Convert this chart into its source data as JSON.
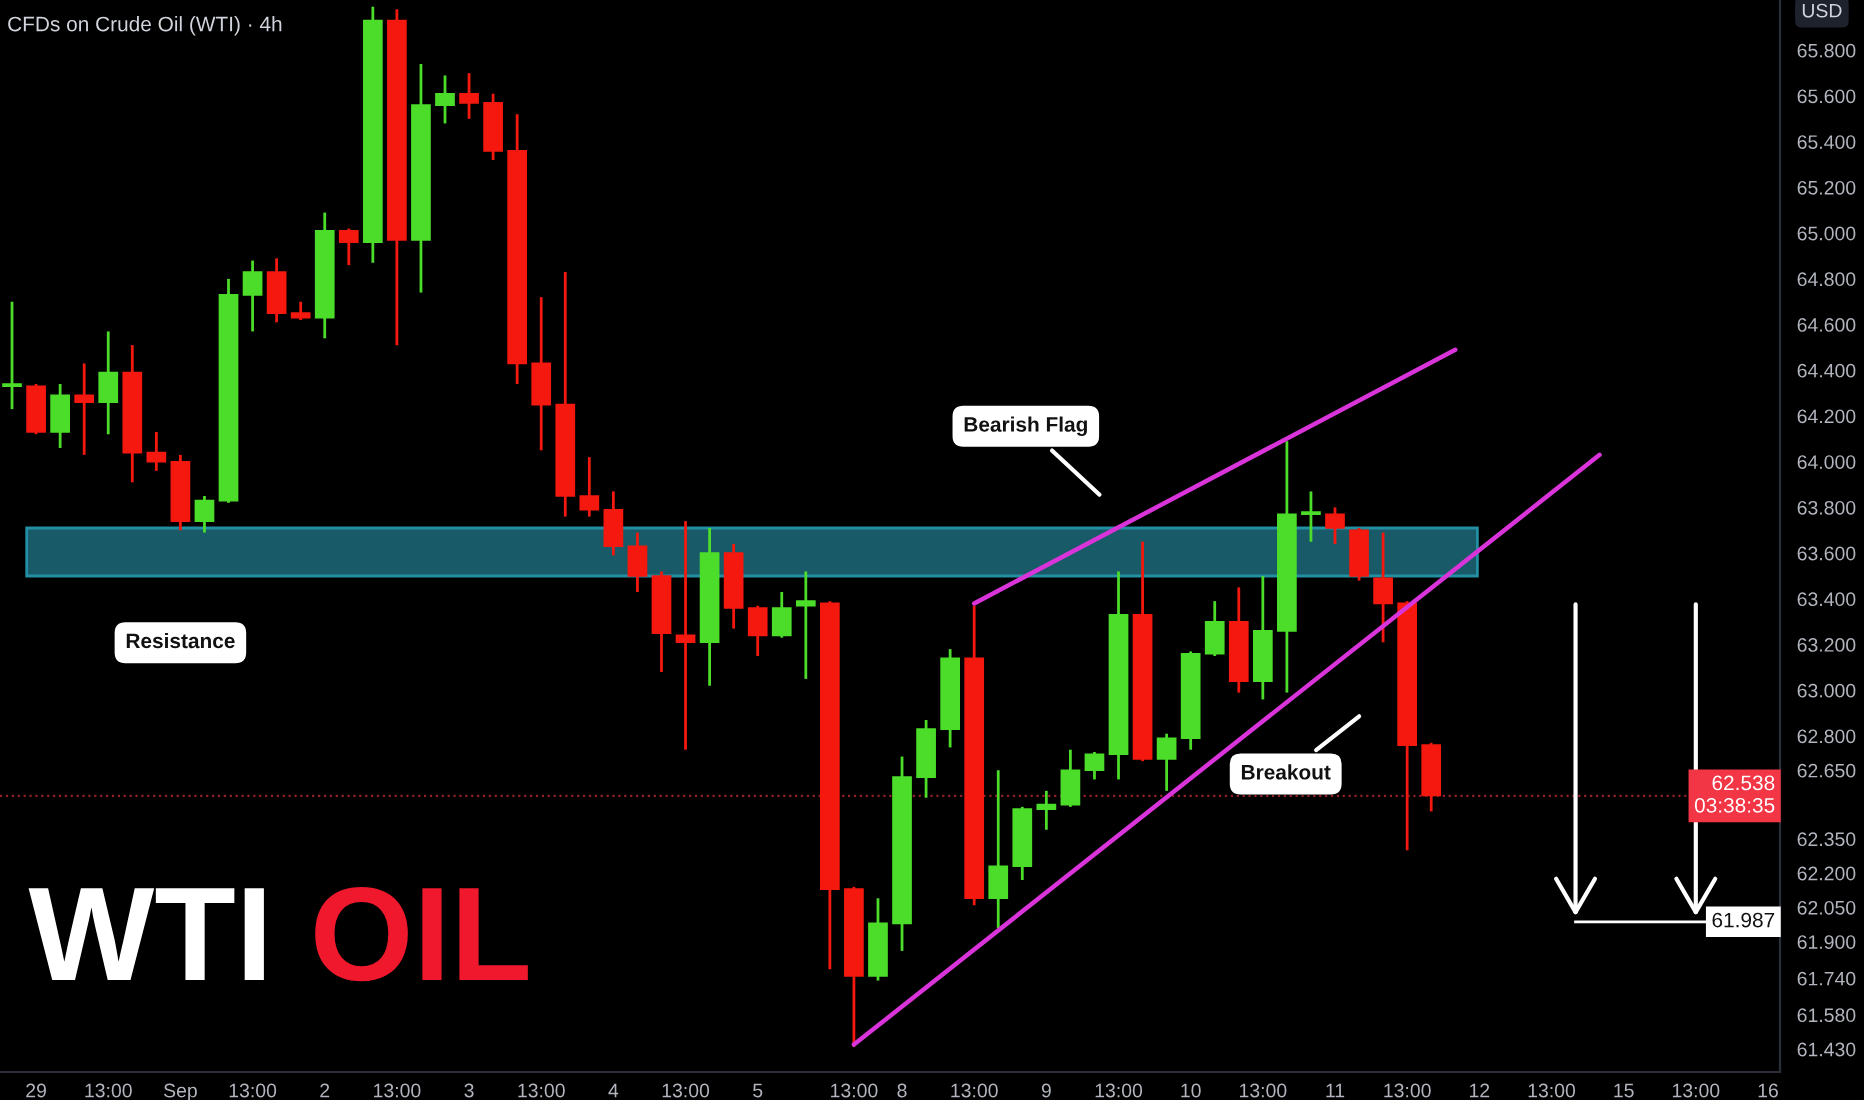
{
  "chart_data": {
    "type": "candlestick",
    "title": "WTI OIL",
    "subtitle": "CFDs on Crude Oil (WTI) · 4h",
    "ylabel": "USD",
    "categories": [
      null,
      "29",
      null,
      null,
      "13:00",
      null,
      null,
      "Sep",
      null,
      null,
      "13:00",
      null,
      null,
      "2",
      null,
      null,
      "13:00",
      null,
      null,
      "3",
      null,
      null,
      "13:00",
      null,
      null,
      "4",
      null,
      null,
      "13:00",
      null,
      null,
      "5",
      null,
      null,
      null,
      "13:00",
      null,
      "8",
      null,
      null,
      "13:00",
      null,
      null,
      "9",
      null,
      null,
      "13:00",
      null,
      null,
      "10",
      null,
      null,
      "13:00",
      null,
      null,
      "11",
      null,
      null,
      "13:00",
      null,
      null,
      "12",
      null,
      null,
      "13:00",
      null,
      null,
      "15",
      null,
      null,
      "13:00",
      null,
      null,
      "16"
    ],
    "ohlc": [
      [
        64.33,
        64.7,
        64.23,
        64.34
      ],
      [
        64.33,
        64.34,
        64.12,
        64.13
      ],
      [
        64.13,
        64.34,
        64.06,
        64.29
      ],
      [
        64.29,
        64.43,
        64.03,
        64.26
      ],
      [
        64.26,
        64.57,
        64.12,
        64.39
      ],
      [
        64.39,
        64.51,
        63.91,
        64.04
      ],
      [
        64.04,
        64.13,
        63.96,
        64.0
      ],
      [
        64.0,
        64.03,
        63.7,
        63.74
      ],
      [
        63.74,
        63.85,
        63.69,
        63.83
      ],
      [
        63.83,
        64.8,
        63.82,
        64.73
      ],
      [
        64.73,
        64.88,
        64.57,
        64.83
      ],
      [
        64.83,
        64.89,
        64.61,
        64.65
      ],
      [
        64.65,
        64.7,
        64.62,
        64.63
      ],
      [
        64.63,
        65.09,
        64.54,
        65.01
      ],
      [
        65.01,
        65.02,
        64.86,
        64.96
      ],
      [
        64.96,
        65.99,
        64.87,
        65.93
      ],
      [
        65.93,
        65.98,
        64.51,
        64.97
      ],
      [
        64.97,
        65.74,
        64.74,
        65.56
      ],
      [
        65.56,
        65.69,
        65.48,
        65.61
      ],
      [
        65.61,
        65.7,
        65.5,
        65.57
      ],
      [
        65.57,
        65.61,
        65.32,
        65.36
      ],
      [
        65.36,
        65.52,
        64.34,
        64.43
      ],
      [
        64.43,
        64.72,
        64.05,
        64.25
      ],
      [
        64.25,
        64.83,
        63.76,
        63.85
      ],
      [
        63.85,
        64.02,
        63.76,
        63.79
      ],
      [
        63.79,
        63.87,
        63.59,
        63.63
      ],
      [
        63.63,
        63.69,
        63.43,
        63.5
      ],
      [
        63.5,
        63.52,
        63.08,
        63.25
      ],
      [
        63.24,
        63.74,
        62.74,
        63.21
      ],
      [
        63.21,
        63.71,
        63.02,
        63.6
      ],
      [
        63.6,
        63.64,
        63.27,
        63.36
      ],
      [
        63.36,
        63.37,
        63.15,
        63.24
      ],
      [
        63.24,
        63.43,
        63.23,
        63.36
      ],
      [
        63.37,
        63.52,
        63.05,
        63.39
      ],
      [
        63.38,
        63.39,
        61.78,
        62.13
      ],
      [
        62.13,
        62.14,
        61.44,
        61.75
      ],
      [
        61.75,
        62.09,
        61.73,
        61.98
      ],
      [
        61.98,
        62.71,
        61.86,
        62.62
      ],
      [
        62.62,
        62.87,
        62.53,
        62.83
      ],
      [
        62.83,
        63.18,
        62.75,
        63.14
      ],
      [
        63.14,
        63.37,
        62.06,
        62.09
      ],
      [
        62.09,
        62.65,
        61.96,
        62.23
      ],
      [
        62.23,
        62.49,
        62.17,
        62.48
      ],
      [
        62.48,
        62.56,
        62.39,
        62.5
      ],
      [
        62.5,
        62.74,
        62.49,
        62.65
      ],
      [
        62.65,
        62.73,
        62.61,
        62.72
      ],
      [
        62.72,
        63.52,
        62.61,
        63.33
      ],
      [
        63.33,
        63.65,
        62.69,
        62.7
      ],
      [
        62.7,
        62.81,
        62.56,
        62.79
      ],
      [
        62.79,
        63.17,
        62.74,
        63.16
      ],
      [
        63.16,
        63.39,
        63.15,
        63.3
      ],
      [
        63.3,
        63.45,
        62.99,
        63.04
      ],
      [
        63.04,
        63.5,
        62.96,
        63.26
      ],
      [
        63.26,
        64.09,
        62.99,
        63.77
      ],
      [
        63.77,
        63.87,
        63.65,
        63.78
      ],
      [
        63.77,
        63.8,
        63.64,
        63.71
      ],
      [
        63.7,
        63.71,
        63.48,
        63.5
      ],
      [
        63.49,
        63.69,
        63.21,
        63.38
      ],
      [
        63.38,
        63.39,
        62.3,
        62.76
      ],
      [
        62.76,
        62.77,
        62.47,
        62.54
      ],
      null,
      null,
      null,
      null,
      null,
      null,
      null,
      null,
      null,
      null,
      null,
      null,
      null,
      null
    ],
    "colors": [
      "#4cdd2a",
      "#f5180f",
      "#4cdd2a",
      "#f5180f",
      "#4cdd2a",
      "#f5180f",
      "#f5180f",
      "#f5180f",
      "#4cdd2a",
      "#4cdd2a",
      "#4cdd2a",
      "#f5180f",
      "#f5180f",
      "#4cdd2a",
      "#f5180f",
      "#4cdd2a",
      "#f5180f",
      "#4cdd2a",
      "#4cdd2a",
      "#f5180f",
      "#f5180f",
      "#f5180f",
      "#f5180f",
      "#f5180f",
      "#f5180f",
      "#f5180f",
      "#f5180f",
      "#f5180f",
      "#f5180f",
      "#4cdd2a",
      "#f5180f",
      "#f5180f",
      "#4cdd2a",
      "#4cdd2a",
      "#f5180f",
      "#f5180f",
      "#4cdd2a",
      "#4cdd2a",
      "#4cdd2a",
      "#4cdd2a",
      "#f5180f",
      "#4cdd2a",
      "#4cdd2a",
      "#4cdd2a",
      "#4cdd2a",
      "#4cdd2a",
      "#4cdd2a",
      "#f5180f",
      "#4cdd2a",
      "#4cdd2a",
      "#4cdd2a",
      "#f5180f",
      "#4cdd2a",
      "#4cdd2a",
      "#4cdd2a",
      "#f5180f",
      "#f5180f",
      "#f5180f",
      "#f5180f",
      "#f5180f",
      null,
      null,
      null,
      null,
      null,
      null,
      null,
      null,
      null,
      null,
      null,
      null,
      null,
      null
    ],
    "series": [
      {
        "type": "line",
        "color": "#d934d9",
        "values": [
          null,
          null,
          null,
          null,
          null,
          null,
          null,
          null,
          null,
          null,
          null,
          null,
          null,
          null,
          null,
          null,
          null,
          null,
          null,
          null,
          null,
          null,
          null,
          null,
          null,
          null,
          null,
          null,
          null,
          null,
          null,
          null,
          null,
          null,
          null,
          61.45,
          null,
          null,
          null,
          null,
          null,
          null,
          null,
          null,
          null,
          null,
          null,
          null,
          null,
          null,
          null,
          null,
          null,
          null,
          null,
          null,
          null,
          null,
          null,
          null,
          null,
          null,
          null,
          null,
          null,
          null,
          64.03,
          null,
          null,
          null,
          null,
          null,
          null,
          null
        ]
      },
      {
        "type": "line",
        "color": "#d934d9",
        "values": [
          null,
          null,
          null,
          null,
          null,
          null,
          null,
          null,
          null,
          null,
          null,
          null,
          null,
          null,
          null,
          null,
          null,
          null,
          null,
          null,
          null,
          null,
          null,
          null,
          null,
          null,
          null,
          null,
          null,
          null,
          null,
          null,
          null,
          null,
          null,
          null,
          null,
          null,
          null,
          null,
          63.38,
          null,
          null,
          null,
          null,
          null,
          null,
          null,
          null,
          null,
          null,
          null,
          null,
          null,
          null,
          null,
          null,
          null,
          null,
          null,
          64.49,
          null,
          null,
          null,
          null,
          null,
          null,
          null,
          null,
          null,
          null,
          null,
          null,
          null
        ]
      }
    ],
    "ylim": [
      61.33,
      66.02
    ],
    "yticks": [
      {
        "value": 65.8,
        "label": "65.800"
      },
      {
        "value": 65.6,
        "label": "65.600"
      },
      {
        "value": 65.4,
        "label": "65.400"
      },
      {
        "value": 65.2,
        "label": "65.200"
      },
      {
        "value": 65.0,
        "label": "65.000"
      },
      {
        "value": 64.8,
        "label": "64.800"
      },
      {
        "value": 64.6,
        "label": "64.600"
      },
      {
        "value": 64.4,
        "label": "64.400"
      },
      {
        "value": 64.2,
        "label": "64.200"
      },
      {
        "value": 64.0,
        "label": "64.000"
      },
      {
        "value": 63.8,
        "label": "63.800"
      },
      {
        "value": 63.6,
        "label": "63.600"
      },
      {
        "value": 63.4,
        "label": "63.400"
      },
      {
        "value": 63.2,
        "label": "63.200"
      },
      {
        "value": 63.0,
        "label": "63.000"
      },
      {
        "value": 62.8,
        "label": "62.800"
      },
      {
        "value": 62.65,
        "label": "62.650"
      },
      {
        "value": 62.35,
        "label": "62.350"
      },
      {
        "value": 62.2,
        "label": "62.200"
      },
      {
        "value": 62.05,
        "label": "62.050"
      },
      {
        "value": 61.9,
        "label": "61.900"
      },
      {
        "value": 61.74,
        "label": "61.740"
      },
      {
        "value": 61.58,
        "label": "61.580"
      },
      {
        "value": 61.43,
        "label": "61.430"
      }
    ],
    "bands": [
      {
        "axis": "y",
        "from": 63.5,
        "to": 63.71,
        "label": "Resistance",
        "color": "#1d6a7a"
      }
    ],
    "ref_lines": [
      {
        "axis": "y",
        "value": 61.987,
        "label": "61.987",
        "color": "#ffffff"
      },
      {
        "axis": "y",
        "value": 62.538,
        "label": "62.538\n03:38:35",
        "color": "#f23645",
        "line_style": "dotted"
      }
    ],
    "annotations": [
      "Bearish Flag",
      "Breakout"
    ],
    "grid": false
  }
}
